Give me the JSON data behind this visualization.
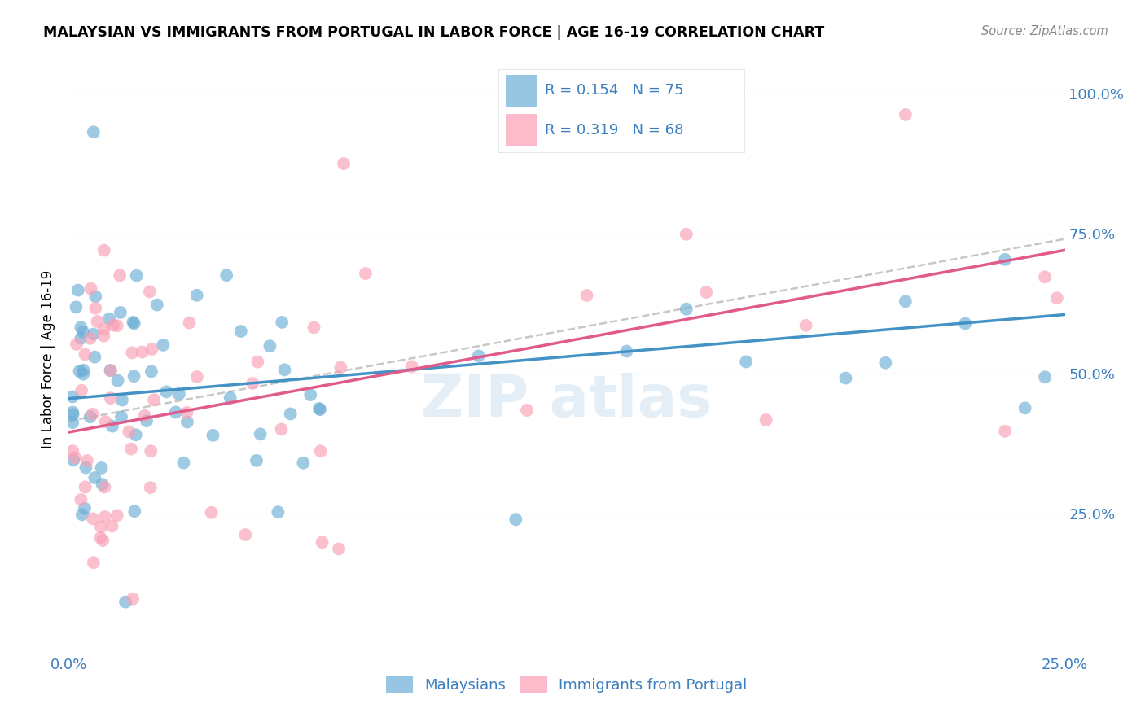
{
  "title": "MALAYSIAN VS IMMIGRANTS FROM PORTUGAL IN LABOR FORCE | AGE 16-19 CORRELATION CHART",
  "source": "Source: ZipAtlas.com",
  "ylabel": "In Labor Force | Age 16-19",
  "xlim": [
    0.0,
    0.25
  ],
  "ylim": [
    0.0,
    1.05
  ],
  "blue_color": "#6baed6",
  "pink_color": "#fa9fb5",
  "trendline_blue": "#4292c6",
  "trendline_pink": "#e05a8a",
  "trendline_dashed": "#b0b0b0",
  "legend_text_color": "#3a7ebf",
  "R_blue": 0.154,
  "N_blue": 75,
  "R_pink": 0.319,
  "N_pink": 68,
  "blue_intercept": 0.455,
  "blue_slope": 0.6,
  "pink_intercept": 0.395,
  "pink_slope": 1.3
}
